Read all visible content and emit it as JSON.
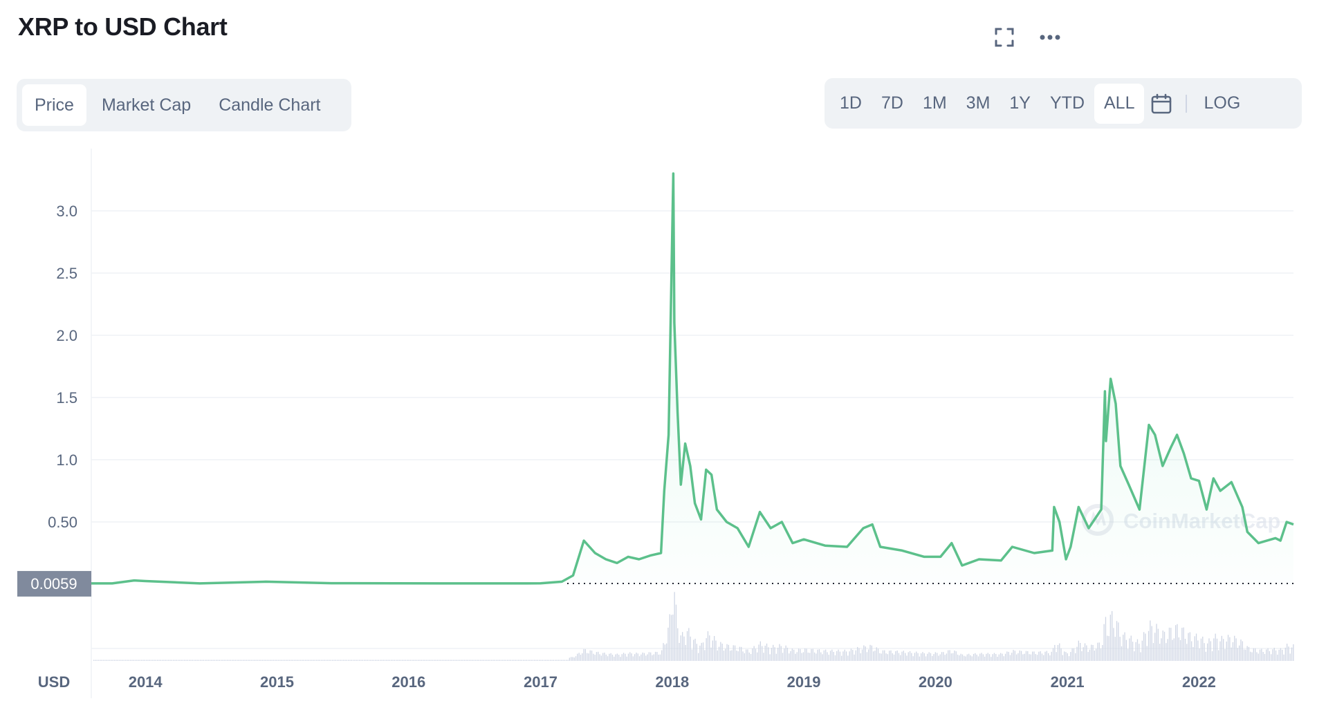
{
  "header": {
    "title": "XRP to USD Chart",
    "fullscreen_icon": "fullscreen-icon",
    "more_icon": "more-horizontal-icon"
  },
  "tabs": [
    {
      "label": "Price",
      "active": true
    },
    {
      "label": "Market Cap",
      "active": false
    },
    {
      "label": "Candle Chart",
      "active": false
    }
  ],
  "ranges": {
    "items": [
      {
        "label": "1D",
        "active": false
      },
      {
        "label": "7D",
        "active": false
      },
      {
        "label": "1M",
        "active": false
      },
      {
        "label": "3M",
        "active": false
      },
      {
        "label": "1Y",
        "active": false
      },
      {
        "label": "YTD",
        "active": false
      },
      {
        "label": "ALL",
        "active": true
      }
    ],
    "calendar_icon": "calendar-icon",
    "log_label": "LOG"
  },
  "currency_label": "USD",
  "watermark": "CoinMarketCap",
  "current_price_label": "0.0059",
  "colors": {
    "line": "#16c784",
    "line_stroke": "#5cc08b",
    "grid": "#eff2f5",
    "axis_text": "#58667e",
    "price_tag_bg": "#808a9d",
    "volume": "#cfd6e4"
  },
  "chart_data": {
    "type": "line",
    "title": "XRP to USD Chart",
    "xlabel": "",
    "ylabel": "USD",
    "ylim": [
      0,
      3.3
    ],
    "yticks": [
      {
        "value": 0.5,
        "label": "0.50"
      },
      {
        "value": 1.0,
        "label": "1.0"
      },
      {
        "value": 1.5,
        "label": "1.5"
      },
      {
        "value": 2.0,
        "label": "2.0"
      },
      {
        "value": 2.5,
        "label": "2.5"
      },
      {
        "value": 3.0,
        "label": "3.0"
      }
    ],
    "xlim": [
      "2013-08-04",
      "2022-09-20"
    ],
    "xticks": [
      {
        "date": "2014-01-01",
        "label": "2014"
      },
      {
        "date": "2015-01-01",
        "label": "2015"
      },
      {
        "date": "2016-01-01",
        "label": "2016"
      },
      {
        "date": "2017-01-01",
        "label": "2017"
      },
      {
        "date": "2018-01-01",
        "label": "2018"
      },
      {
        "date": "2019-01-01",
        "label": "2019"
      },
      {
        "date": "2020-01-01",
        "label": "2020"
      },
      {
        "date": "2021-01-01",
        "label": "2021"
      },
      {
        "date": "2022-01-01",
        "label": "2022"
      }
    ],
    "grid": true,
    "series": [
      {
        "values": [
          [
            "2013-08-04",
            0.0059
          ],
          [
            "2013-10-01",
            0.006
          ],
          [
            "2013-12-01",
            0.03
          ],
          [
            "2014-01-01",
            0.025
          ],
          [
            "2014-06-01",
            0.006
          ],
          [
            "2014-12-01",
            0.02
          ],
          [
            "2015-06-01",
            0.008
          ],
          [
            "2016-06-01",
            0.006
          ],
          [
            "2017-01-01",
            0.0065
          ],
          [
            "2017-03-01",
            0.02
          ],
          [
            "2017-04-01",
            0.07
          ],
          [
            "2017-05-01",
            0.35
          ],
          [
            "2017-06-01",
            0.25
          ],
          [
            "2017-07-01",
            0.2
          ],
          [
            "2017-08-01",
            0.17
          ],
          [
            "2017-09-01",
            0.22
          ],
          [
            "2017-10-01",
            0.2
          ],
          [
            "2017-11-01",
            0.23
          ],
          [
            "2017-12-01",
            0.25
          ],
          [
            "2017-12-10",
            0.75
          ],
          [
            "2017-12-22",
            1.2
          ],
          [
            "2018-01-04",
            3.3
          ],
          [
            "2018-01-07",
            2.1
          ],
          [
            "2018-01-16",
            1.38
          ],
          [
            "2018-01-25",
            0.8
          ],
          [
            "2018-02-06",
            1.13
          ],
          [
            "2018-02-20",
            0.95
          ],
          [
            "2018-03-05",
            0.65
          ],
          [
            "2018-03-22",
            0.52
          ],
          [
            "2018-04-05",
            0.92
          ],
          [
            "2018-04-20",
            0.88
          ],
          [
            "2018-05-05",
            0.6
          ],
          [
            "2018-06-01",
            0.5
          ],
          [
            "2018-07-01",
            0.45
          ],
          [
            "2018-08-01",
            0.3
          ],
          [
            "2018-09-01",
            0.58
          ],
          [
            "2018-10-01",
            0.45
          ],
          [
            "2018-11-01",
            0.5
          ],
          [
            "2018-12-01",
            0.33
          ],
          [
            "2019-01-01",
            0.36
          ],
          [
            "2019-03-01",
            0.31
          ],
          [
            "2019-05-01",
            0.3
          ],
          [
            "2019-06-15",
            0.45
          ],
          [
            "2019-07-10",
            0.48
          ],
          [
            "2019-08-01",
            0.3
          ],
          [
            "2019-10-01",
            0.27
          ],
          [
            "2019-12-01",
            0.22
          ],
          [
            "2020-01-15",
            0.22
          ],
          [
            "2020-02-15",
            0.33
          ],
          [
            "2020-03-15",
            0.15
          ],
          [
            "2020-05-01",
            0.2
          ],
          [
            "2020-07-01",
            0.19
          ],
          [
            "2020-08-01",
            0.3
          ],
          [
            "2020-10-01",
            0.25
          ],
          [
            "2020-11-20",
            0.27
          ],
          [
            "2020-11-25",
            0.62
          ],
          [
            "2020-12-10",
            0.5
          ],
          [
            "2020-12-28",
            0.2
          ],
          [
            "2021-01-10",
            0.3
          ],
          [
            "2021-02-01",
            0.62
          ],
          [
            "2021-03-01",
            0.45
          ],
          [
            "2021-04-05",
            0.6
          ],
          [
            "2021-04-15",
            1.55
          ],
          [
            "2021-04-18",
            1.15
          ],
          [
            "2021-05-01",
            1.65
          ],
          [
            "2021-05-15",
            1.45
          ],
          [
            "2021-05-28",
            0.95
          ],
          [
            "2021-06-20",
            0.8
          ],
          [
            "2021-07-20",
            0.6
          ],
          [
            "2021-08-15",
            1.28
          ],
          [
            "2021-09-01",
            1.2
          ],
          [
            "2021-09-22",
            0.95
          ],
          [
            "2021-10-15",
            1.1
          ],
          [
            "2021-11-01",
            1.2
          ],
          [
            "2021-11-20",
            1.05
          ],
          [
            "2021-12-10",
            0.85
          ],
          [
            "2022-01-01",
            0.83
          ],
          [
            "2022-01-22",
            0.6
          ],
          [
            "2022-02-10",
            0.85
          ],
          [
            "2022-03-01",
            0.75
          ],
          [
            "2022-04-01",
            0.82
          ],
          [
            "2022-05-01",
            0.62
          ],
          [
            "2022-05-15",
            0.42
          ],
          [
            "2022-06-15",
            0.33
          ],
          [
            "2022-08-01",
            0.37
          ],
          [
            "2022-08-15",
            0.35
          ],
          [
            "2022-09-01",
            0.5
          ],
          [
            "2022-09-20",
            0.48
          ]
        ]
      }
    ]
  }
}
